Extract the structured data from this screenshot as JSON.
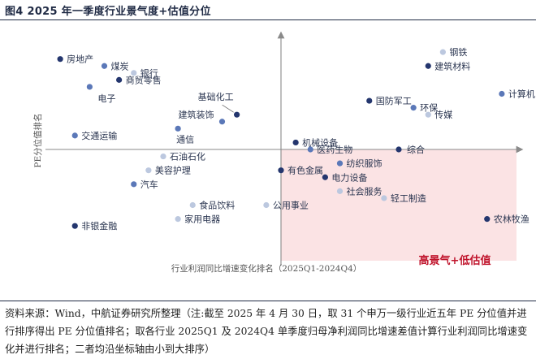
{
  "figure": {
    "title": "图4  2025 年一季度行业景气度+估值分位",
    "source_note": "资料来源：Wind，中航证券研究所整理（注:截至 2025 年 4 月 30 日，取 31 个申万一级行业近五年 PE 分位值并进行排序得出 PE 分位值排名；取各行业 2025Q1 及 2024Q4 单季度归母净利润同比增速差值计算行业利润同比增速变化并进行排名；二者均沿坐标轴由小到大排序）"
  },
  "colors": {
    "dark": "#24366e",
    "medium": "#5b78b8",
    "light": "#bcc8df",
    "highlight_region": "#fbe3e4",
    "highlight_text": "#c0142c",
    "axis": "#8a8a8a"
  },
  "chart_data": {
    "type": "scatter",
    "title": "",
    "xlabel": "行业利润同比增速变化排名（2025Q1-2024Q4）",
    "ylabel": "PE分位值排名",
    "xlim": [
      0,
      32
    ],
    "ylim": [
      0,
      32
    ],
    "axis_cross": [
      16,
      16
    ],
    "highlight_region": {
      "label": "高景气+低估值",
      "x": [
        16,
        32
      ],
      "y": [
        0,
        16
      ]
    },
    "points": [
      {
        "name": "房地产",
        "x": 1,
        "y": 29,
        "tone": "dark"
      },
      {
        "name": "煤炭",
        "x": 4,
        "y": 28,
        "tone": "medium"
      },
      {
        "name": "银行",
        "x": 6,
        "y": 27,
        "tone": "light"
      },
      {
        "name": "商贸零售",
        "x": 5,
        "y": 26,
        "tone": "dark"
      },
      {
        "name": "电子",
        "x": 3,
        "y": 25,
        "tone": "medium"
      },
      {
        "name": "基础化工",
        "x": 13,
        "y": 21,
        "tone": "dark"
      },
      {
        "name": "建筑装饰",
        "x": 12,
        "y": 20,
        "tone": "medium"
      },
      {
        "name": "交通运输",
        "x": 2,
        "y": 18,
        "tone": "medium"
      },
      {
        "name": "通信",
        "x": 9,
        "y": 19,
        "tone": "medium"
      },
      {
        "name": "石油石化",
        "x": 8,
        "y": 15,
        "tone": "light"
      },
      {
        "name": "美容护理",
        "x": 7,
        "y": 13,
        "tone": "light"
      },
      {
        "name": "汽车",
        "x": 6,
        "y": 11,
        "tone": "medium"
      },
      {
        "name": "食品饮料",
        "x": 10,
        "y": 8,
        "tone": "light"
      },
      {
        "name": "家用电器",
        "x": 9,
        "y": 6,
        "tone": "light"
      },
      {
        "name": "非银金融",
        "x": 2,
        "y": 5,
        "tone": "dark"
      },
      {
        "name": "钢铁",
        "x": 27,
        "y": 30,
        "tone": "light"
      },
      {
        "name": "建筑材料",
        "x": 26,
        "y": 28,
        "tone": "dark"
      },
      {
        "name": "计算机",
        "x": 31,
        "y": 24,
        "tone": "medium"
      },
      {
        "name": "国防军工",
        "x": 22,
        "y": 23,
        "tone": "dark"
      },
      {
        "name": "环保",
        "x": 25,
        "y": 22,
        "tone": "medium"
      },
      {
        "name": "传媒",
        "x": 26,
        "y": 21,
        "tone": "light"
      },
      {
        "name": "机械设备",
        "x": 17,
        "y": 17,
        "tone": "dark"
      },
      {
        "name": "医药生物",
        "x": 18,
        "y": 16,
        "tone": "medium"
      },
      {
        "name": "综合",
        "x": 24,
        "y": 16,
        "tone": "dark"
      },
      {
        "name": "纺织服饰",
        "x": 20,
        "y": 14,
        "tone": "medium"
      },
      {
        "name": "有色金属",
        "x": 16,
        "y": 13,
        "tone": "dark"
      },
      {
        "name": "电力设备",
        "x": 19,
        "y": 12,
        "tone": "dark"
      },
      {
        "name": "社会服务",
        "x": 20,
        "y": 10,
        "tone": "light"
      },
      {
        "name": "轻工制造",
        "x": 23,
        "y": 9,
        "tone": "light"
      },
      {
        "name": "公用事业",
        "x": 15,
        "y": 8,
        "tone": "light"
      },
      {
        "name": "农林牧渔",
        "x": 30,
        "y": 6,
        "tone": "dark"
      }
    ]
  }
}
